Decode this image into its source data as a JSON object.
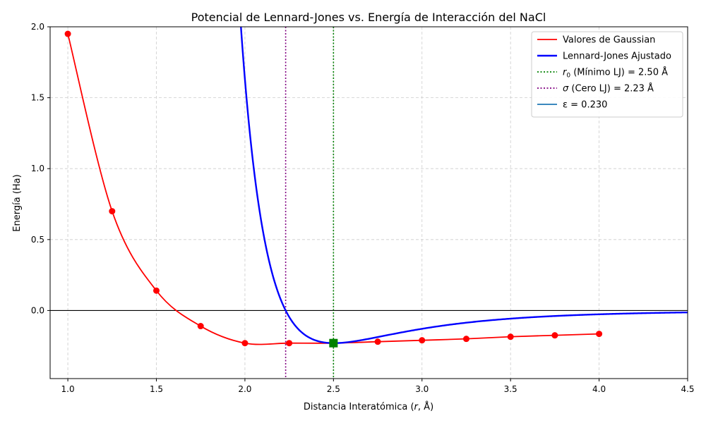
{
  "chart_data": {
    "type": "line",
    "title": "Potencial de Lennard-Jones vs. Energía de Interacción del NaCl",
    "xlabel": "Distancia Interatómica (r, Å)",
    "ylabel": "Energía (Ha)",
    "xlim": [
      0.9,
      4.5
    ],
    "ylim": [
      -0.48,
      2.0
    ],
    "xticks": [
      1.0,
      1.5,
      2.0,
      2.5,
      3.0,
      3.5,
      4.0,
      4.5
    ],
    "xtick_labels": [
      "1.0",
      "1.5",
      "2.0",
      "2.5",
      "3.0",
      "3.5",
      "4.0",
      "4.5"
    ],
    "yticks": [
      0.0,
      0.5,
      1.0,
      1.5,
      2.0
    ],
    "ytick_labels": [
      "0.0",
      "0.5",
      "1.0",
      "1.5",
      "2.0"
    ],
    "grid": true,
    "legend_position": "top-right",
    "series": [
      {
        "name": "Valores de Gaussian",
        "color": "#ff0000",
        "x": [
          1.0,
          1.25,
          1.5,
          1.75,
          2.0,
          2.25,
          2.5,
          2.75,
          3.0,
          3.25,
          3.5,
          3.75,
          4.0
        ],
        "values": [
          1.95,
          0.7,
          0.14,
          -0.11,
          -0.23,
          -0.23,
          -0.23,
          -0.22,
          -0.21,
          -0.2,
          -0.185,
          -0.175,
          -0.165
        ]
      },
      {
        "name": "Lennard-Jones Ajustado",
        "color": "#0000ff",
        "epsilon": 0.23,
        "sigma": 2.23,
        "r0": 2.5
      }
    ],
    "reference_lines": [
      {
        "name": "r0 (Mínimo LJ) = 2.50 Å",
        "x": 2.5,
        "color": "#008000"
      },
      {
        "name": "σ (Cero LJ) = 2.23 Å",
        "x": 2.23,
        "color": "#800080"
      },
      {
        "y": 0.0,
        "color": "#000000"
      }
    ],
    "minimum_marker": {
      "x": 2.5,
      "y": -0.23,
      "color": "#008000"
    },
    "legend": [
      {
        "label": "Valores de Gaussian",
        "style": "solid",
        "color": "#ff0000"
      },
      {
        "label": "Lennard-Jones Ajustado",
        "style": "solid-thick",
        "color": "#0000ff"
      },
      {
        "label_prefix": "r",
        "label_sub": "0",
        "label_rest": " (Mínimo LJ) = 2.50 Å",
        "style": "dotted",
        "color": "#008000"
      },
      {
        "label_prefix": "σ",
        "label_sub": "",
        "label_rest": " (Cero LJ) = 2.23 Å",
        "style": "dotted",
        "color": "#800080"
      },
      {
        "label": "ε = 0.230",
        "style": "solid",
        "color": "#1f77b4"
      }
    ]
  }
}
